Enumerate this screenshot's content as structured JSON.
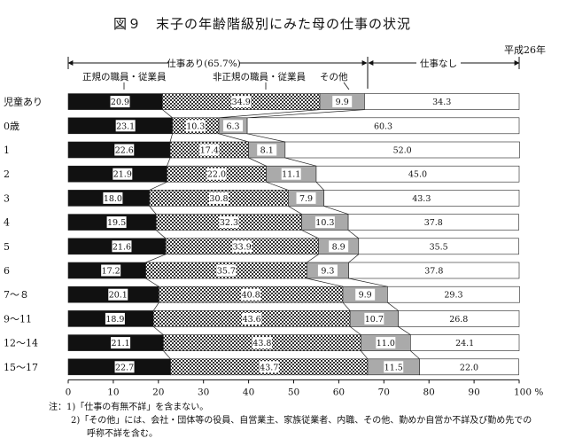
{
  "title": "図９　末子の年齢階級別にみた母の仕事の状況",
  "era_label": "平成26年",
  "header": {
    "working_label": "仕事あり(65.7%)",
    "not_working_label": "仕事なし",
    "regular_label": "正規の職員・従業員",
    "nonregular_label": "非正規の職員・従業員",
    "other_label": "その他"
  },
  "chart_data": {
    "type": "bar",
    "orientation": "horizontal",
    "stacked": true,
    "categories": [
      "児童あり",
      "0歳",
      "1",
      "2",
      "3",
      "4",
      "5",
      "6",
      "7～８",
      "9～11",
      "12～14",
      "15～17"
    ],
    "series": [
      {
        "name": "正規の職員・従業員",
        "color": "#111111",
        "pattern": "solid",
        "values": [
          20.9,
          23.1,
          22.6,
          21.9,
          18.0,
          19.5,
          21.6,
          17.2,
          20.1,
          18.9,
          21.1,
          22.7
        ]
      },
      {
        "name": "非正規の職員・従業員",
        "color": "#555555",
        "pattern": "checker",
        "values": [
          34.9,
          10.3,
          17.4,
          22.0,
          30.8,
          32.3,
          33.9,
          35.7,
          40.8,
          43.6,
          43.8,
          43.7
        ]
      },
      {
        "name": "その他",
        "color": "#aaaaaa",
        "pattern": "solid",
        "values": [
          9.9,
          6.3,
          8.1,
          11.1,
          7.9,
          10.3,
          8.9,
          9.3,
          9.9,
          10.7,
          11.0,
          11.5
        ]
      },
      {
        "name": "仕事なし",
        "color": "#ffffff",
        "pattern": "solid",
        "values": [
          34.3,
          60.3,
          52.0,
          45.0,
          43.3,
          37.8,
          35.5,
          37.8,
          29.3,
          26.8,
          24.1,
          22.0
        ]
      }
    ],
    "x_ticks": [
      "0",
      "10",
      "20",
      "30",
      "40",
      "50",
      "60",
      "70",
      "80",
      "90",
      "100 %"
    ],
    "xlim": [
      0,
      100
    ],
    "grid": false,
    "legend": "labels above bars with bracket arrows"
  },
  "notes": {
    "line1": "注：1)「仕事の有無不詳」を含まない。",
    "line2": "2)「その他」には、会社・団体等の役員、自営業主、家族従業者、内職、その他、勤めか自営か不詳及び勤め先での",
    "line3": "呼称不詳を含む。"
  }
}
